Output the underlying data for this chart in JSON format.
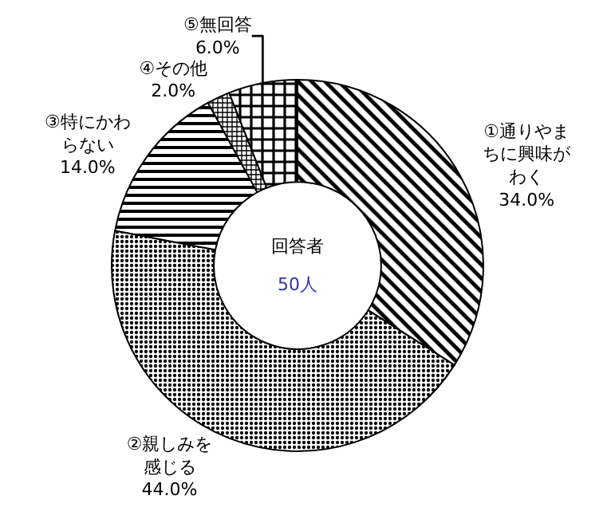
{
  "chart_data": {
    "type": "donut",
    "categories": [
      "①通りやまちに興味がわく",
      "②親しみを感じる",
      "③特にかわらない",
      "④その他",
      "⑤無回答"
    ],
    "values": [
      34,
      44,
      14,
      2,
      6
    ],
    "value_labels": [
      "34.0%",
      "44.0%",
      "14.0%",
      "2.0%",
      "6.0%"
    ],
    "colors": [
      "#000000",
      "#000000",
      "#000000",
      "#000000",
      "#000000"
    ],
    "annotations": [
      "回答者",
      "50人"
    ],
    "legend": false
  }
}
